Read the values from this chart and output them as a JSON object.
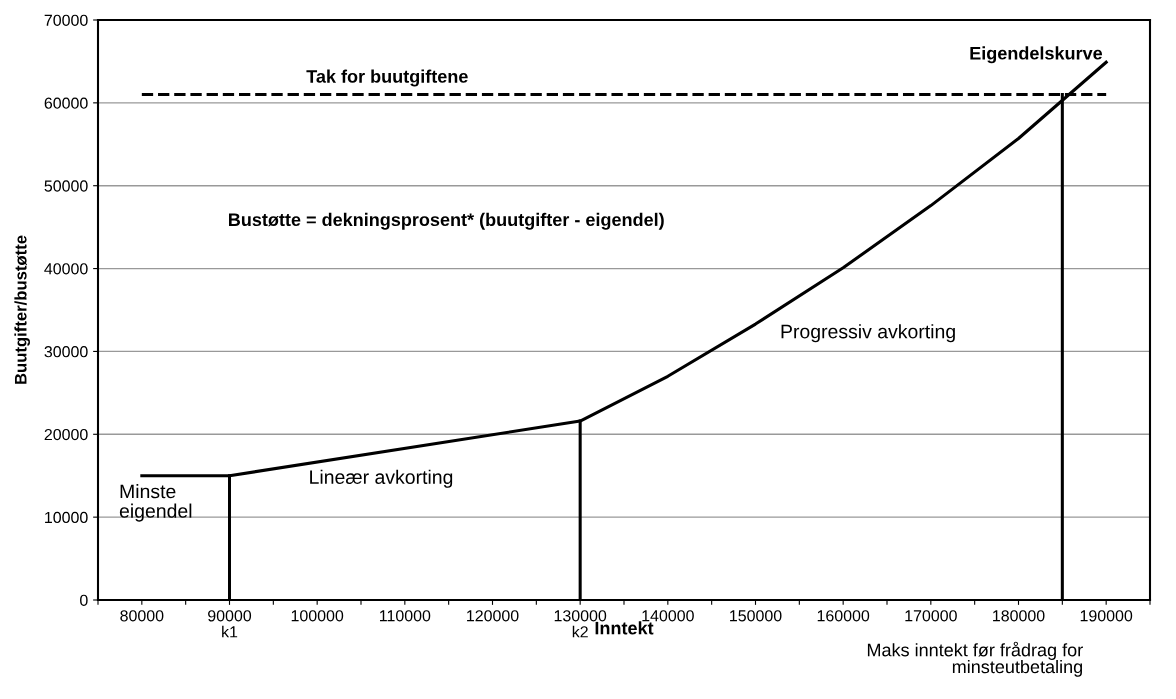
{
  "chart_data": {
    "type": "line",
    "xlabel": "Inntekt",
    "ylabel": "Buutgifter/bustøtte",
    "xlim": [
      75000,
      195000
    ],
    "xticks": [
      {
        "value": 75000,
        "label": null
      },
      80000,
      {
        "value": 85000,
        "label": null
      },
      {
        "value": 90000,
        "label": "90000\nk1"
      },
      {
        "value": 95000,
        "label": null
      },
      100000,
      {
        "value": 105000,
        "label": null
      },
      110000,
      {
        "value": 115000,
        "label": null
      },
      120000,
      {
        "value": 125000,
        "label": null
      },
      {
        "value": 130000,
        "label": "130000\nk2"
      },
      {
        "value": 135000,
        "label": null
      },
      140000,
      {
        "value": 145000,
        "label": null
      },
      150000,
      {
        "value": 155000,
        "label": null
      },
      160000,
      {
        "value": 165000,
        "label": null
      },
      170000,
      {
        "value": 175000,
        "label": null
      },
      180000,
      {
        "value": 185000,
        "label": null
      },
      190000,
      {
        "value": 195000,
        "label": null
      }
    ],
    "ylim": [
      0,
      70000
    ],
    "yticks": [
      0,
      10000,
      20000,
      30000,
      40000,
      50000,
      60000,
      70000
    ],
    "grid": "y",
    "legend": false,
    "marker": "none",
    "series": [
      {
        "color": "#000000",
        "x": [
          80000,
          90000,
          130000,
          140000,
          150000,
          160000,
          170000,
          180000,
          190000
        ],
        "values": [
          15000,
          15000,
          21600,
          27000,
          33300,
          40100,
          47600,
          55700,
          64900
        ]
      },
      {
        "color": "#000000",
        "line_style": "dashed",
        "x": [
          80000,
          190000
        ],
        "values": [
          61000,
          61000
        ]
      },
      {
        "color": "#000000",
        "x": [
          90000,
          90000
        ],
        "values": [
          0,
          15000
        ]
      },
      {
        "color": "#000000",
        "x": [
          130000,
          130000
        ],
        "values": [
          0,
          21600
        ]
      },
      {
        "color": "#000000",
        "x": [
          185000,
          185000
        ],
        "values": [
          0,
          61000
        ]
      }
    ],
    "annotations": [
      "Tak for buutgiftene",
      "Eigendelskurve",
      "Bustøtte = dekningsprosent* (buutgifter - eigendel)",
      "Progressiv avkorting",
      "Lineær avkorting",
      "Minste\neigendel",
      {
        "text": "Maks inntekt før frådrag for\nminsteutbetaling",
        "x": 185000,
        "y": 0
      }
    ]
  }
}
